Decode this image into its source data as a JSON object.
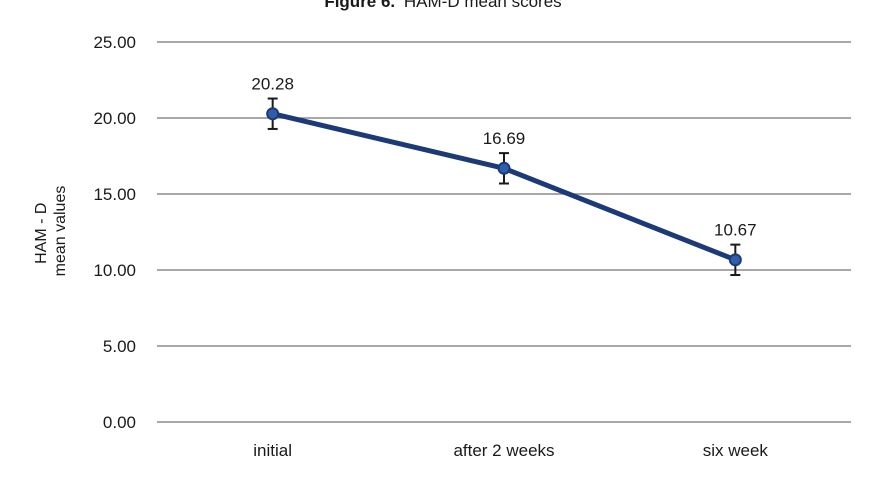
{
  "figure_title": {
    "prefix": "Figure 6.",
    "text": "HAM-D mean scores"
  },
  "chart_data": {
    "type": "line",
    "title": "HAM-D mean scores",
    "xlabel": "",
    "ylabel_lines": [
      "HAM - D",
      "mean values"
    ],
    "categories": [
      "initial",
      "after 2 weeks",
      "six week"
    ],
    "series": [
      {
        "values": [
          20.28,
          16.69,
          10.67
        ],
        "error": [
          1.0,
          1.0,
          1.0
        ],
        "color": "#1d3a78",
        "marker_color": "#2e5fa8"
      }
    ],
    "data_labels": [
      "20.28",
      "16.69",
      "10.67"
    ],
    "ylim": [
      0,
      25
    ],
    "yticks": [
      0,
      5,
      10,
      15,
      20,
      25
    ],
    "ytick_labels": [
      "0.00",
      "5.00",
      "10.00",
      "15.00",
      "20.00",
      "25.00"
    ],
    "grid": true,
    "legend": "none"
  }
}
